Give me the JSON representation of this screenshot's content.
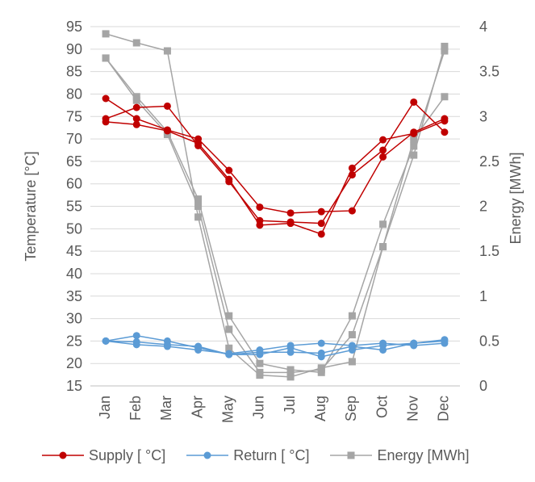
{
  "chart_data": {
    "type": "line",
    "categories": [
      "Jan",
      "Feb",
      "Mar",
      "Apr",
      "May",
      "Jun",
      "Jul",
      "Aug",
      "Sep",
      "Oct",
      "Nov",
      "Dec"
    ],
    "y_left": {
      "label": "Temperature [°C]",
      "ylim": [
        15,
        95
      ],
      "ticks": [
        "15",
        "20",
        "25",
        "30",
        "35",
        "40",
        "45",
        "50",
        "55",
        "60",
        "65",
        "70",
        "75",
        "80",
        "85",
        "90",
        "95"
      ]
    },
    "y_right": {
      "label": "Energy [MWh]",
      "ylim": [
        0,
        4
      ],
      "ticks": [
        "0",
        "0.5",
        "1",
        "1.5",
        "2",
        "2.5",
        "3",
        "3.5",
        "4"
      ]
    },
    "grid": "horizontal",
    "legend_position": "bottom",
    "series": [
      {
        "name": "Supply [ °C]",
        "axis": "left",
        "color": "#c00000",
        "marker": "circle",
        "values": [
          79.0,
          74.5,
          72.0,
          70.0,
          63.0,
          54.8,
          53.5,
          53.8,
          54.0,
          66.0,
          71.5,
          74.5
        ]
      },
      {
        "name": "Supply [ °C]",
        "axis": "left",
        "color": "#c00000",
        "marker": "circle",
        "values": [
          74.5,
          77.0,
          77.3,
          68.5,
          60.5,
          51.8,
          51.5,
          51.2,
          62.0,
          67.5,
          78.2,
          71.5
        ]
      },
      {
        "name": "Supply [ °C]",
        "axis": "left",
        "color": "#c00000",
        "marker": "circle",
        "values": [
          73.8,
          73.2,
          71.8,
          69.0,
          61.0,
          50.8,
          51.2,
          48.8,
          63.5,
          69.8,
          71.2,
          74.0
        ]
      },
      {
        "name": "Return [ °C]",
        "axis": "left",
        "color": "#5b9bd5",
        "marker": "circle",
        "values": [
          25.0,
          26.2,
          25.0,
          23.5,
          22.0,
          22.5,
          22.5,
          22.3,
          23.8,
          23.0,
          24.5,
          25.3
        ]
      },
      {
        "name": "Return [ °C]",
        "axis": "left",
        "color": "#5b9bd5",
        "marker": "circle",
        "values": [
          25.0,
          24.2,
          23.8,
          23.0,
          22.2,
          23.0,
          24.0,
          24.5,
          24.0,
          24.5,
          24.0,
          24.5
        ]
      },
      {
        "name": "Return [ °C]",
        "axis": "left",
        "color": "#5b9bd5",
        "marker": "circle",
        "values": [
          25.0,
          24.8,
          24.2,
          23.8,
          22.0,
          22.0,
          23.5,
          21.5,
          23.0,
          24.0,
          24.5,
          25.0
        ]
      },
      {
        "name": "Energy [MWh]",
        "axis": "right",
        "color": "#a5a5a5",
        "marker": "square",
        "values": [
          3.92,
          3.82,
          3.73,
          1.88,
          0.42,
          0.12,
          0.1,
          0.2,
          0.27,
          1.55,
          2.57,
          3.78
        ]
      },
      {
        "name": "Energy [MWh]",
        "axis": "right",
        "color": "#a5a5a5",
        "marker": "square",
        "values": [
          3.65,
          3.22,
          2.83,
          2.08,
          0.78,
          0.25,
          0.18,
          0.15,
          0.78,
          1.8,
          2.67,
          3.73
        ]
      },
      {
        "name": "Energy [MWh]",
        "axis": "right",
        "color": "#a5a5a5",
        "marker": "square",
        "values": [
          3.65,
          3.18,
          2.8,
          2.0,
          0.63,
          0.15,
          0.15,
          0.18,
          0.57,
          1.55,
          2.75,
          3.22
        ]
      }
    ],
    "legend": [
      {
        "label": "Supply [ °C]",
        "color": "#c00000",
        "marker": "circle"
      },
      {
        "label": "Return [ °C]",
        "color": "#5b9bd5",
        "marker": "circle"
      },
      {
        "label": "Energy [MWh]",
        "color": "#a5a5a5",
        "marker": "square"
      }
    ]
  }
}
